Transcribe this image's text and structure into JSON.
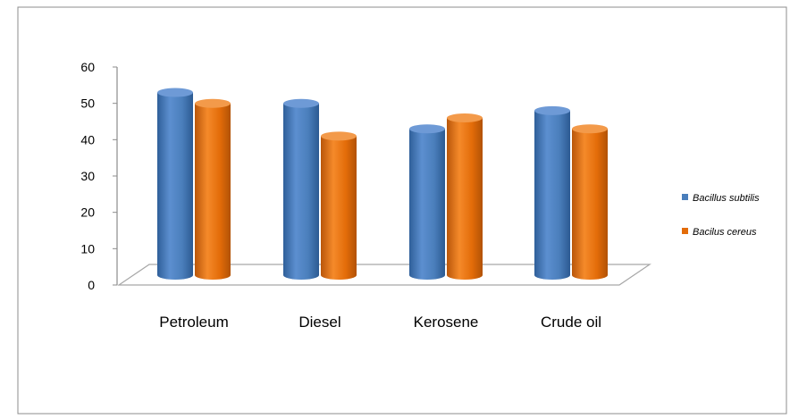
{
  "chart_data": {
    "type": "bar",
    "style": "3d-cylinder",
    "categories": [
      "Petroleum",
      "Diesel",
      "Kerosene",
      "Crude oil"
    ],
    "series": [
      {
        "name": "Bacillus subtilis",
        "color": "#4a7ebb",
        "values": [
          52,
          49,
          42,
          47
        ]
      },
      {
        "name": "Bacilus cereus",
        "color": "#e36c09",
        "values": [
          49,
          40,
          45,
          42
        ]
      }
    ],
    "yticks": [
      "0",
      "10",
      "20",
      "30",
      "40",
      "50",
      "60"
    ],
    "ylim": [
      0,
      60
    ],
    "legend_position": "right",
    "grid": false
  }
}
